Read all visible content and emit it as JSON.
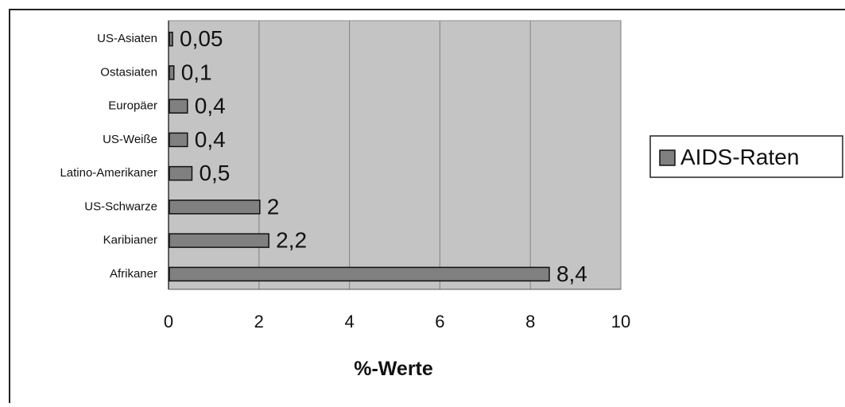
{
  "chart_data": {
    "type": "bar",
    "orientation": "horizontal",
    "title": "",
    "xlabel": "%-Werte",
    "ylabel": "",
    "xlim": [
      0,
      10
    ],
    "x_ticks": [
      "0",
      "2",
      "4",
      "6",
      "8",
      "10"
    ],
    "grid": true,
    "legend_position": "right",
    "categories": [
      "US-Asiaten",
      "Ostasiaten",
      "Europäer",
      "US-Weiße",
      "Latino-Amerikaner",
      "US-Schwarze",
      "Karibianer",
      "Afrikaner"
    ],
    "series": [
      {
        "name": "AIDS-Raten",
        "values": [
          0.05,
          0.1,
          0.4,
          0.4,
          0.5,
          2,
          2.2,
          8.4
        ],
        "labels": [
          "0,05",
          "0,1",
          "0,4",
          "0,4",
          "0,5",
          "2",
          "2,2",
          "8,4"
        ]
      }
    ],
    "colors": {
      "plot_background": "#c4c4c4",
      "bar_fill": "#808080",
      "bar_stroke": "#111111",
      "gridline": "#8c8c8c"
    }
  }
}
